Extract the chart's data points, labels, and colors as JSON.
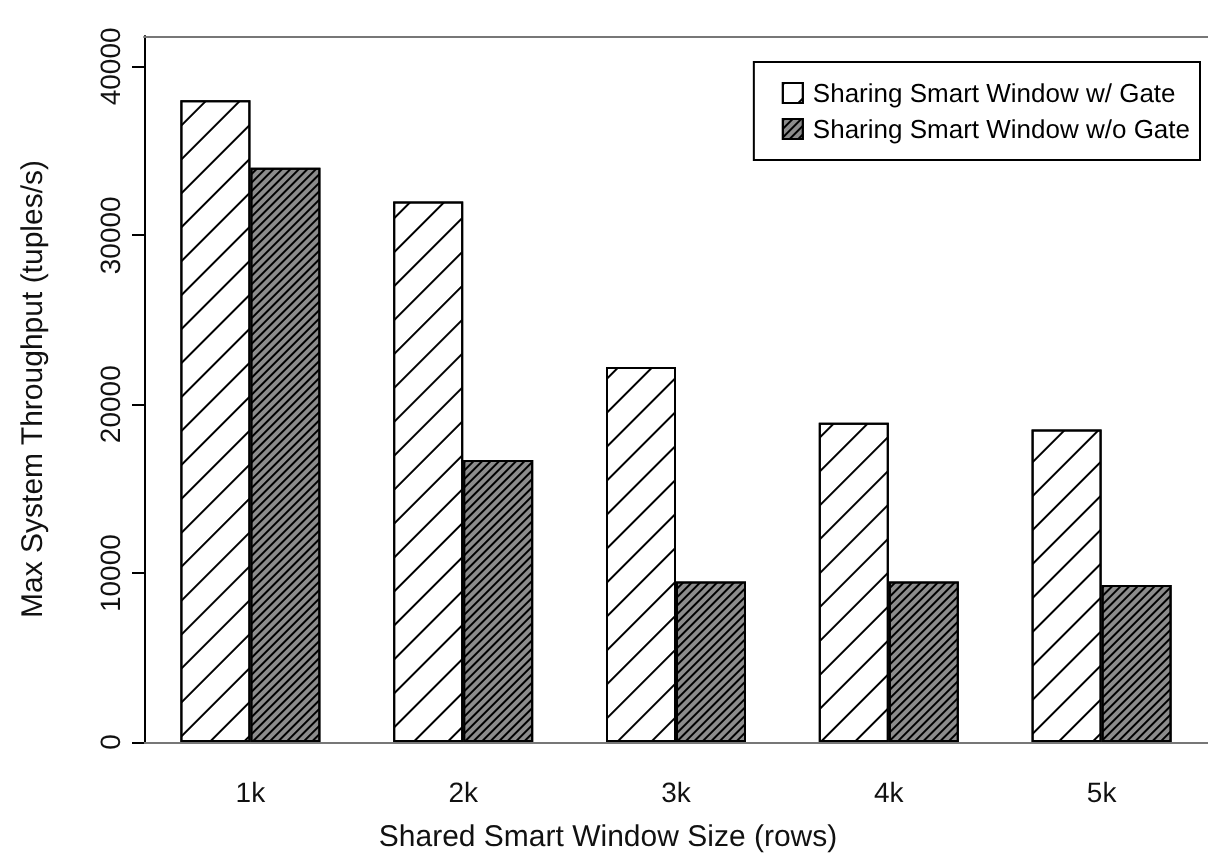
{
  "chart_data": {
    "type": "bar",
    "xlabel": "Shared Smart Window Size (rows)",
    "ylabel": "Max System Throughput (tuples/s)",
    "categories": [
      "1k",
      "2k",
      "3k",
      "4k",
      "5k"
    ],
    "series": [
      {
        "name": "Sharing Smart Window w/ Gate",
        "color": "#ffffff",
        "values": [
          38000,
          32000,
          22200,
          18900,
          18500
        ]
      },
      {
        "name": "Sharing Smart Window w/o Gate",
        "color": "#8c8c8c",
        "values": [
          34000,
          16700,
          9500,
          9500,
          9300
        ]
      }
    ],
    "ylim": [
      0,
      41800
    ],
    "yticks": [
      0,
      10000,
      20000,
      30000,
      40000
    ],
    "grid": false,
    "legend": "top right"
  }
}
